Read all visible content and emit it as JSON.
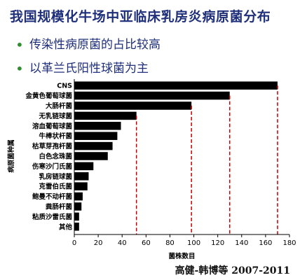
{
  "header": {
    "title": "我国规模化牛场中亚临床乳房炎病原菌分布",
    "bullets": [
      "传染性病原菌的占比较高",
      "以革兰氏阳性球菌为主"
    ],
    "bullet_icon": "dot-icon",
    "citation": "高健-韩博等 2007-2011"
  },
  "colors": {
    "title": "#1f2f7a",
    "bullet": "#2f8f2f",
    "bar": "#000000",
    "ref_line": "#cc0000"
  },
  "chart_data": {
    "type": "bar",
    "orientation": "horizontal",
    "title": "",
    "xlabel": "菌株数目",
    "ylabel": "病原菌种属",
    "xlim": [
      0,
      180
    ],
    "xticks": [
      0,
      20,
      40,
      60,
      80,
      100,
      120,
      140,
      160,
      180
    ],
    "grid": false,
    "categories": [
      "CNS",
      "金黄色葡萄球菌",
      "大肠杆菌",
      "无乳链球菌",
      "溶血葡萄球菌",
      "牛棒状杆菌",
      "枯草芽孢杆菌",
      "白色念珠菌",
      "伤寒沙门氏菌",
      "乳房链球菌",
      "克雷伯氏菌",
      "鲍曼不动杆菌",
      "粪肠杆菌",
      "粘质沙雷氏菌",
      "其他"
    ],
    "values": [
      170,
      130,
      98,
      52,
      39,
      36,
      32,
      28,
      16,
      12,
      11,
      7,
      6,
      4,
      4
    ],
    "reference_lines": [
      {
        "category": "无乳链球菌",
        "value": 52
      },
      {
        "category": "大肠杆菌",
        "value": 98
      },
      {
        "category": "金黄色葡萄球菌",
        "value": 130
      },
      {
        "category": "CNS",
        "value": 170
      }
    ]
  }
}
